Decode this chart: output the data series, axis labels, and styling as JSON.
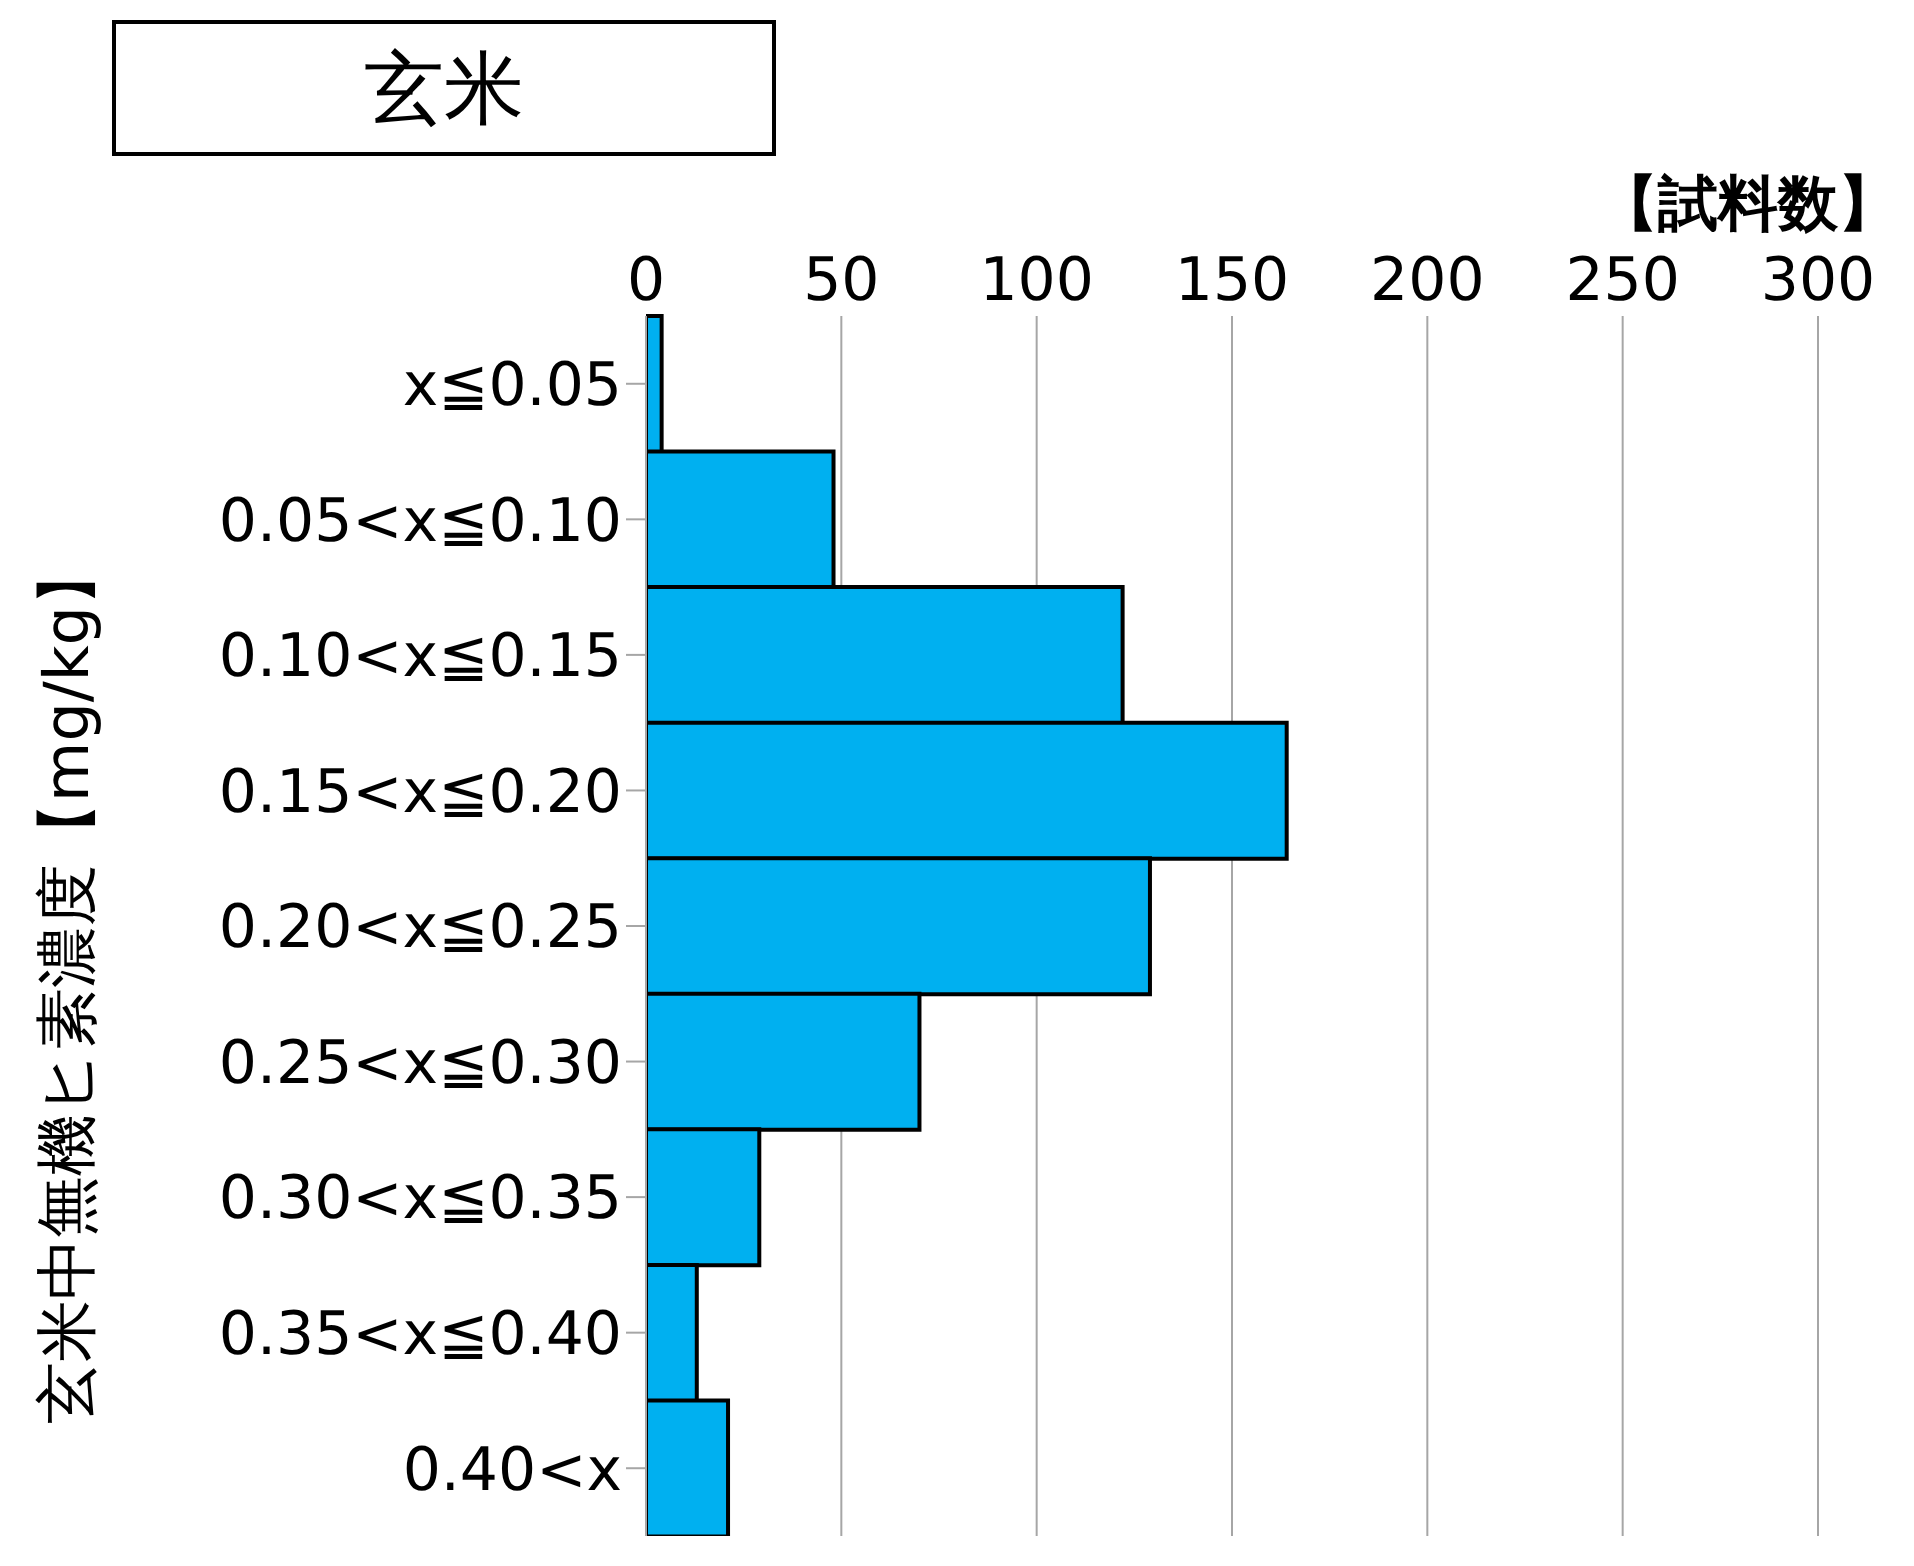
{
  "chart_data": {
    "type": "bar",
    "orientation": "horizontal",
    "title": "玄米",
    "xlabel": "【試料数】",
    "ylabel": "玄米中無機ヒ素濃度【mg/kg】",
    "categories": [
      "x≦0.05",
      "0.05<x≦0.10",
      "0.10<x≦0.15",
      "0.15<x≦0.20",
      "0.20<x≦0.25",
      "0.25<x≦0.30",
      "0.30<x≦0.35",
      "0.35<x≦0.40",
      "0.40<x"
    ],
    "values": [
      4,
      48,
      122,
      164,
      129,
      70,
      29,
      13,
      21
    ],
    "color": "#00b0f0",
    "xlim": [
      0,
      300
    ],
    "xticks": [
      0,
      50,
      100,
      150,
      200,
      250,
      300
    ],
    "grid": "x"
  }
}
